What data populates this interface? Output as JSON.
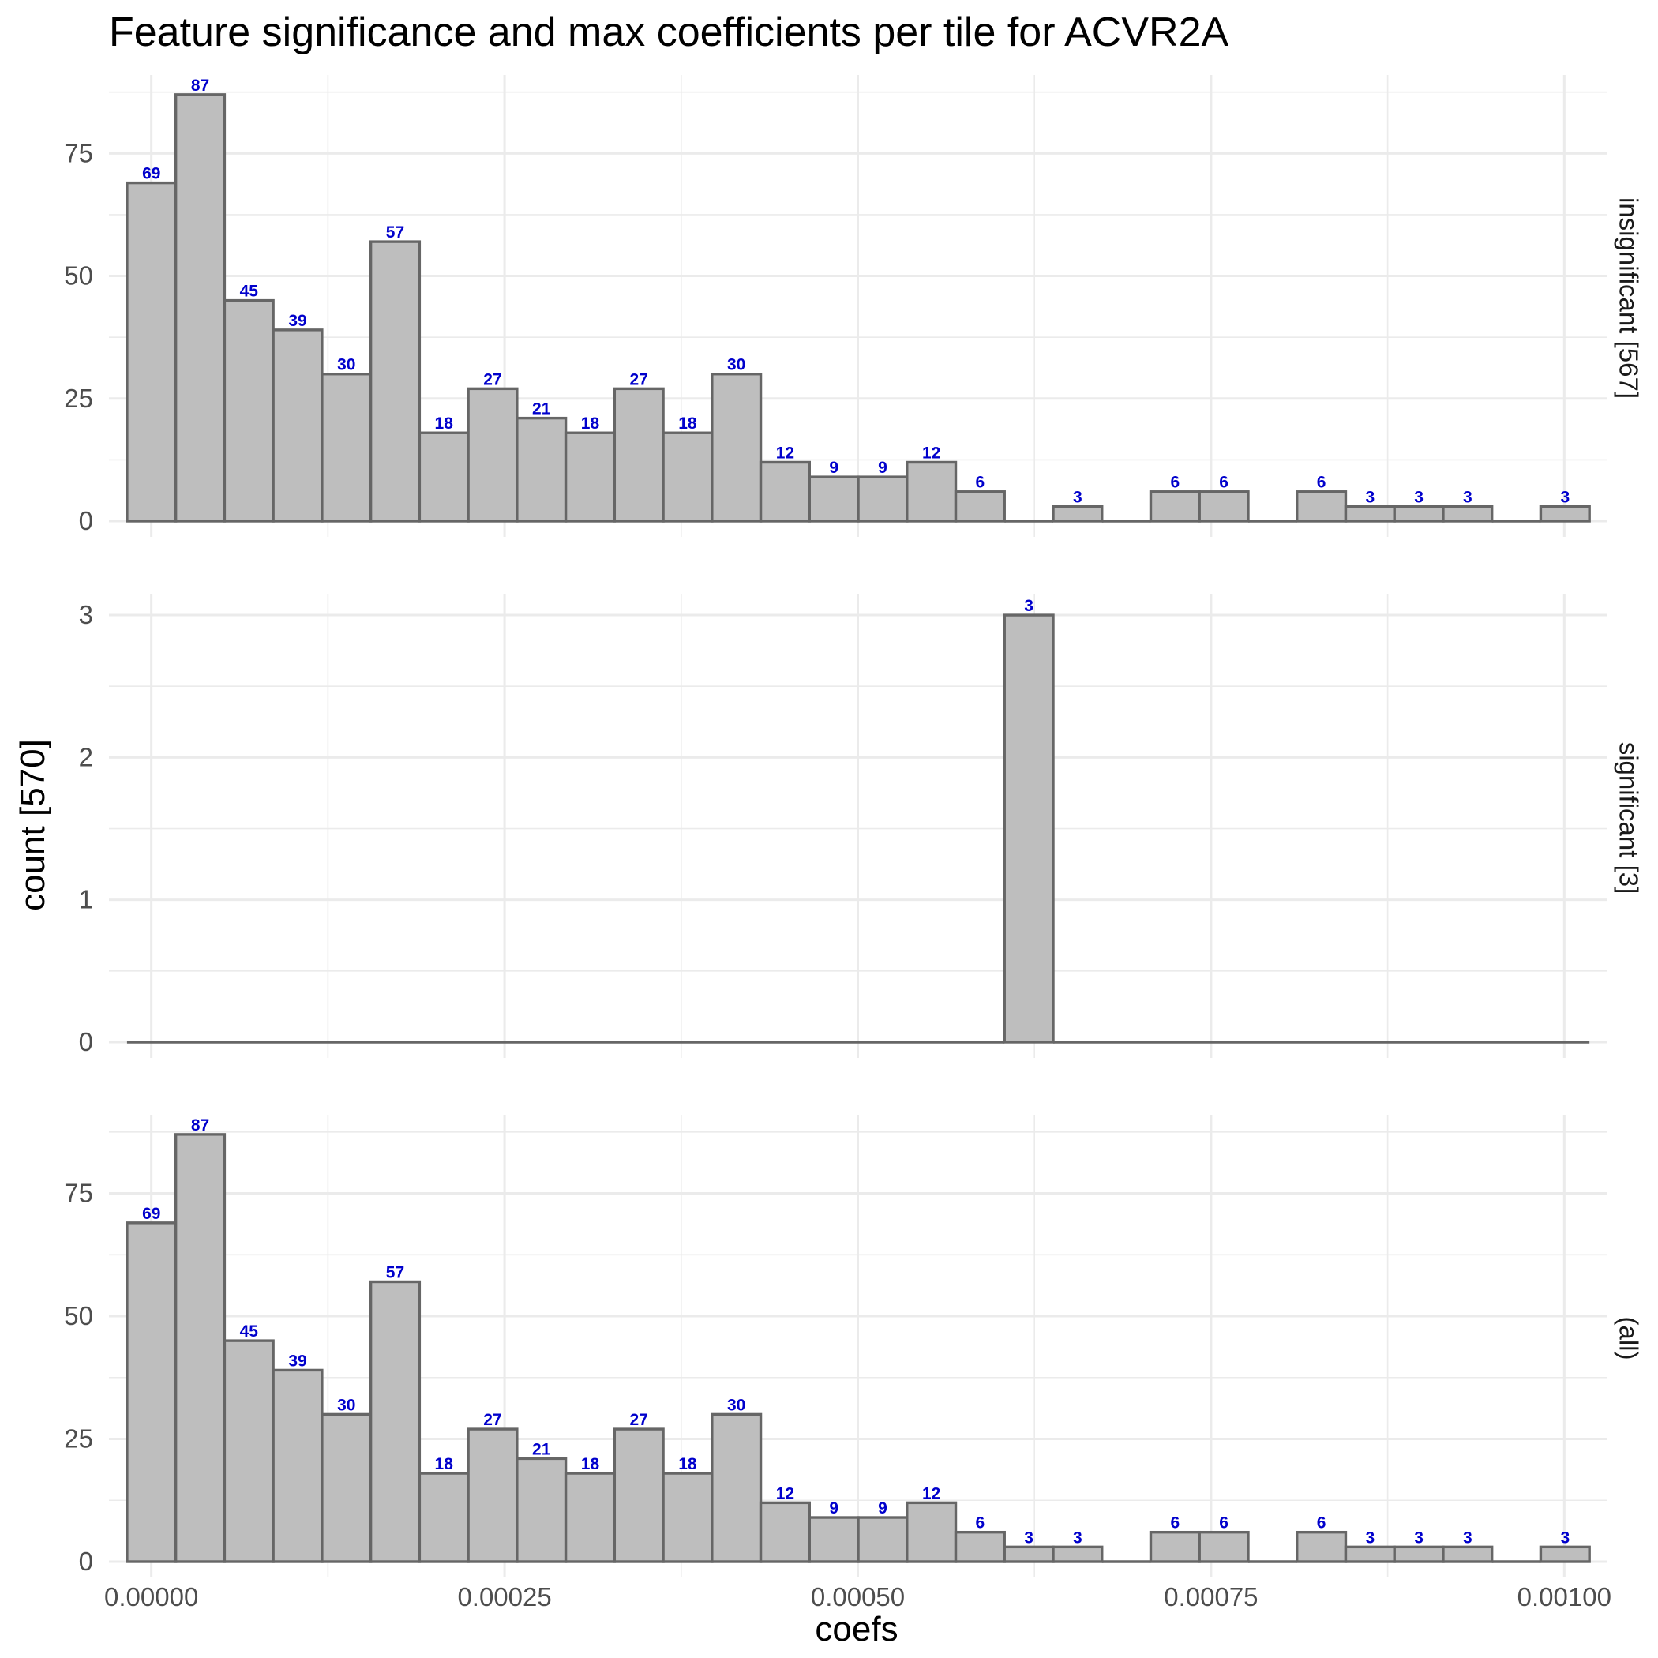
{
  "chart_data": {
    "type": "bar",
    "title": "Feature significance and max coefficients per tile for ACVR2A",
    "xlabel": "coefs",
    "ylabel": "count [570]",
    "xlim": [
      -3e-05,
      0.00103
    ],
    "x_ticks": [
      "0.00000",
      "0.00025",
      "0.00050",
      "0.00075",
      "0.00100"
    ],
    "x_tick_values": [
      0,
      0.00025,
      0.0005,
      0.00075,
      0.001
    ],
    "bin_start": -1.72e-05,
    "bin_width": 3.45e-05,
    "grid": true,
    "panels": [
      {
        "strip": "insignificant [567]",
        "ylim": [
          0,
          91
        ],
        "y_ticks": [
          "0",
          "25",
          "50",
          "75"
        ],
        "y_tick_values": [
          0,
          25,
          50,
          75
        ],
        "values": [
          69,
          87,
          45,
          39,
          30,
          57,
          18,
          27,
          21,
          18,
          27,
          18,
          30,
          12,
          9,
          9,
          12,
          6,
          0,
          3,
          0,
          6,
          6,
          0,
          6,
          3,
          3,
          3,
          0,
          3
        ],
        "labels": [
          "69",
          "87",
          "45",
          "39",
          "30",
          "57",
          "18",
          "27",
          "21",
          "18",
          "27",
          "18",
          "30",
          "12",
          "9",
          "9",
          "12",
          "6",
          "",
          "3",
          "",
          "6",
          "6",
          "",
          "6",
          "3",
          "3",
          "3",
          "",
          "3"
        ]
      },
      {
        "strip": "significant [3]",
        "ylim": [
          0,
          3.15
        ],
        "y_ticks": [
          "0",
          "1",
          "2",
          "3"
        ],
        "y_tick_values": [
          0,
          1,
          2,
          3
        ],
        "values": [
          0,
          0,
          0,
          0,
          0,
          0,
          0,
          0,
          0,
          0,
          0,
          0,
          0,
          0,
          0,
          0,
          0,
          0,
          3,
          0,
          0,
          0,
          0,
          0,
          0,
          0,
          0,
          0,
          0,
          0
        ],
        "labels": [
          "",
          "",
          "",
          "",
          "",
          "",
          "",
          "",
          "",
          "",
          "",
          "",
          "",
          "",
          "",
          "",
          "",
          "",
          "3",
          "",
          "",
          "",
          "",
          "",
          "",
          "",
          "",
          "",
          "",
          ""
        ]
      },
      {
        "strip": "(all)",
        "ylim": [
          0,
          91
        ],
        "y_ticks": [
          "0",
          "25",
          "50",
          "75"
        ],
        "y_tick_values": [
          0,
          25,
          50,
          75
        ],
        "values": [
          69,
          87,
          45,
          39,
          30,
          57,
          18,
          27,
          21,
          18,
          27,
          18,
          30,
          12,
          9,
          9,
          12,
          6,
          3,
          3,
          0,
          6,
          6,
          0,
          6,
          3,
          3,
          3,
          0,
          3
        ],
        "labels": [
          "69",
          "87",
          "45",
          "39",
          "30",
          "57",
          "18",
          "27",
          "21",
          "18",
          "27",
          "18",
          "30",
          "12",
          "9",
          "9",
          "12",
          "6",
          "3",
          "3",
          "",
          "6",
          "6",
          "",
          "6",
          "3",
          "3",
          "3",
          "",
          "3"
        ]
      }
    ]
  }
}
